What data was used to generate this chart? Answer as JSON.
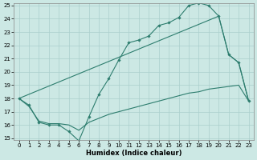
{
  "xlabel": "Humidex (Indice chaleur)",
  "bg_color": "#cce8e4",
  "grid_color": "#aacfcc",
  "line_color": "#2d7d6e",
  "ylim": [
    15,
    25
  ],
  "xlim": [
    -0.5,
    23.5
  ],
  "yticks": [
    15,
    16,
    17,
    18,
    19,
    20,
    21,
    22,
    23,
    24,
    25
  ],
  "xticks": [
    0,
    1,
    2,
    3,
    4,
    5,
    6,
    7,
    8,
    9,
    10,
    11,
    12,
    13,
    14,
    15,
    16,
    17,
    18,
    19,
    20,
    21,
    22,
    23
  ],
  "line1_x": [
    0,
    1,
    2,
    3,
    4,
    5,
    6,
    7,
    8,
    9,
    10,
    11,
    12,
    13,
    14,
    15,
    16,
    17,
    18,
    19,
    20,
    21,
    22,
    23
  ],
  "line1_y": [
    18.0,
    17.5,
    16.2,
    16.0,
    16.0,
    15.5,
    14.8,
    16.6,
    18.3,
    19.5,
    20.9,
    22.2,
    22.4,
    22.7,
    23.5,
    23.7,
    24.1,
    25.0,
    25.2,
    25.0,
    24.2,
    21.3,
    20.7,
    17.8
  ],
  "line2_x": [
    0,
    20,
    21,
    22,
    23
  ],
  "line2_y": [
    18.0,
    24.2,
    21.3,
    20.7,
    17.8
  ],
  "line3_x": [
    0,
    1,
    2,
    3,
    4,
    5,
    6,
    7,
    8,
    9,
    10,
    11,
    12,
    13,
    14,
    15,
    16,
    17,
    18,
    19,
    20,
    21,
    22,
    23
  ],
  "line3_y": [
    18.0,
    17.4,
    16.3,
    16.1,
    16.1,
    16.0,
    15.6,
    16.2,
    16.5,
    16.8,
    17.0,
    17.2,
    17.4,
    17.6,
    17.8,
    18.0,
    18.2,
    18.4,
    18.5,
    18.7,
    18.8,
    18.9,
    19.0,
    17.8
  ]
}
